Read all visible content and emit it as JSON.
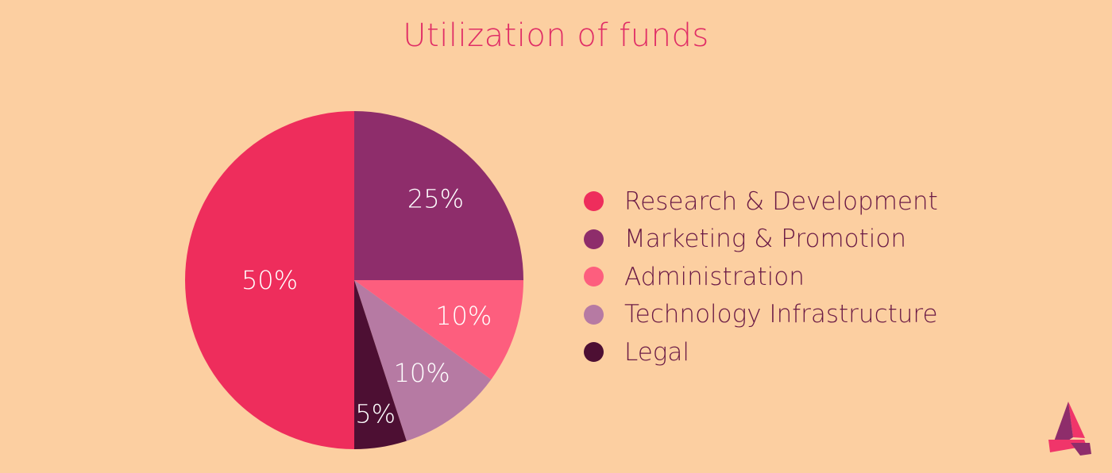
{
  "chart_data": {
    "type": "pie",
    "title": "Utilization of funds",
    "categories": [
      "Research & Development",
      "Marketing & Promotion",
      "Administration",
      "Technology Infrastructure",
      "Legal"
    ],
    "values": [
      50,
      25,
      10,
      10,
      5
    ],
    "labels": [
      "50%",
      "25%",
      "10%",
      "10%",
      "5%"
    ],
    "colors": [
      "#ee2d5c",
      "#8e2d6b",
      "#fd5e7e",
      "#b67aa3",
      "#4d0f33"
    ],
    "legend_position": "right"
  },
  "logo": {
    "icon": "a-triangle-logo-icon",
    "colors": [
      "#f0356a",
      "#8e2d6b"
    ]
  }
}
